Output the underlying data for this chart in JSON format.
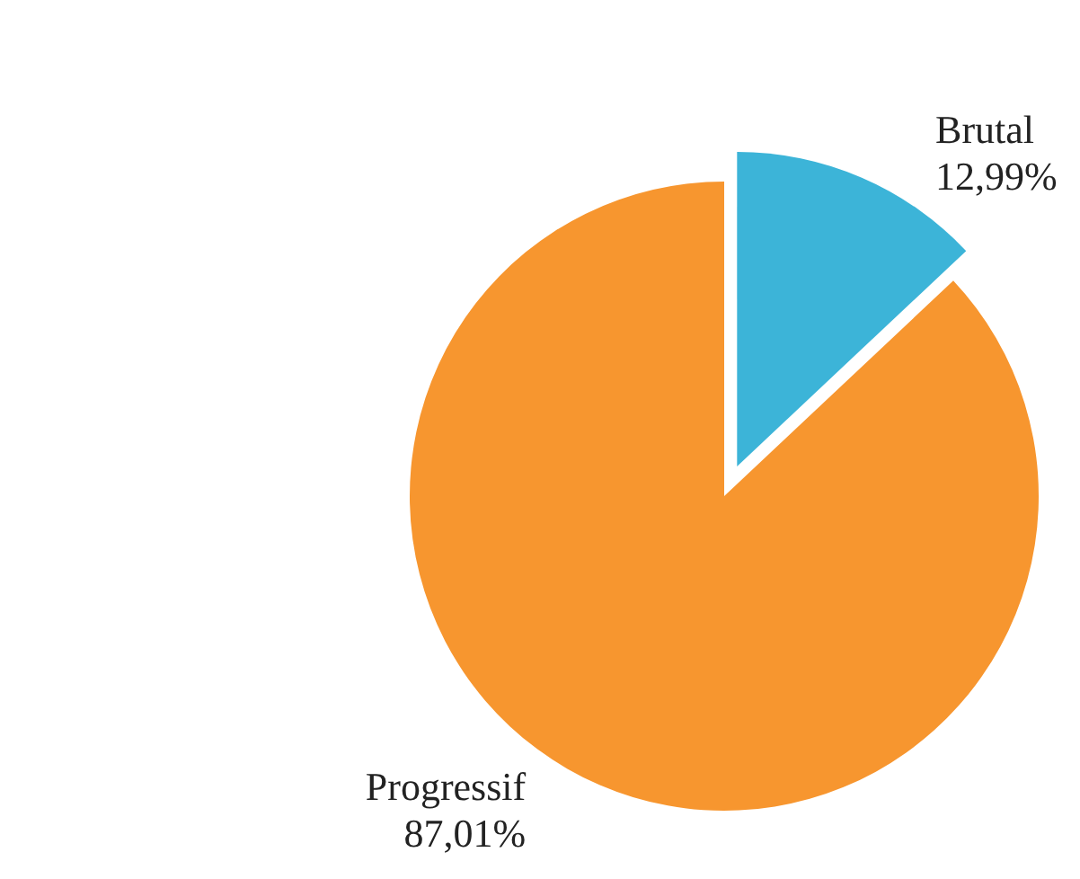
{
  "chart_data": {
    "type": "pie",
    "categories": [
      "Brutal",
      "Progressif"
    ],
    "values": [
      12.99,
      87.01
    ],
    "value_labels": [
      "12,99%",
      "87,01%"
    ],
    "colors": [
      "#3cb4d8",
      "#f7962f"
    ],
    "legend": false
  }
}
